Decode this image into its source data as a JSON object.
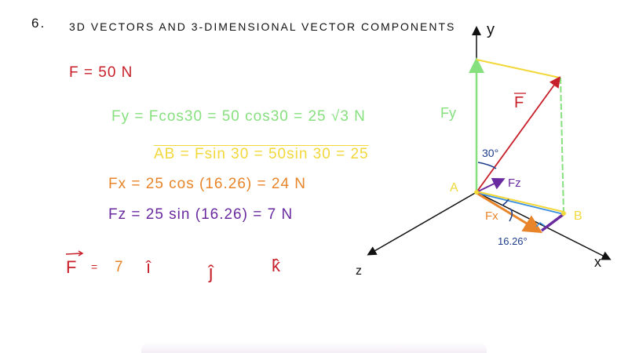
{
  "problem": {
    "number": "6.",
    "title": "3D VECTORS AND 3-DIMENSIONAL VECTOR COMPONENTS"
  },
  "equations": {
    "force": "F = 50 N",
    "fy": "Fy = Fcos30 = 50 cos30 = 25 √3 N",
    "ab": "AB = Fsin 30 = 50sin 30 = 25",
    "fx": "Fx = 25 cos (16.26) = 24 N",
    "fz": "Fz = 25 sin (16.26) = 7 N",
    "vector_lhs": "F",
    "vector_eq": "=",
    "vector_partial": "7",
    "i_hat": "î",
    "j_hat": "ĵ",
    "k_hat": "k̂"
  },
  "diagram": {
    "axis_y": "y",
    "axis_x": "x",
    "axis_z": "z",
    "point_a": "A",
    "point_b": "B",
    "label_f": "F",
    "label_fy": "Fy",
    "label_fz": "Fz",
    "label_fx": "Fx",
    "angle_30": "30°",
    "angle_1626": "16.26°"
  },
  "colors": {
    "red": "#c8202a",
    "green": "#86e07e",
    "yellow": "#f2d83a",
    "orange": "#e8852a",
    "purple": "#6a2aa0",
    "blue": "#1e3c8c",
    "light_blue": "#3a8ee0"
  }
}
